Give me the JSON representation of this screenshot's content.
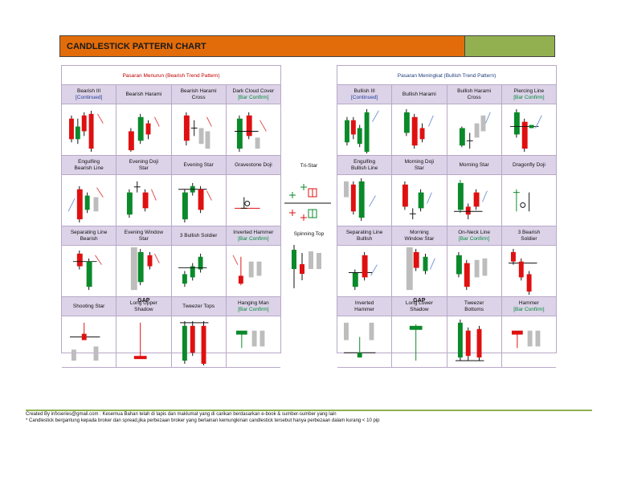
{
  "header": {
    "title": "CANDLESTICK PATTERN CHART"
  },
  "left_panel": {
    "heading": "Pasaran Menurun (Bearish Trend Pattern)",
    "rows": [
      [
        {
          "label": "Bearish III",
          "sub": "[Continued]",
          "sub_color": "blue"
        },
        {
          "label": "Bearish Harami",
          "sub": "",
          "sub_color": ""
        },
        {
          "label": "Bearish Harami",
          "sub": "Cross",
          "sub_color": ""
        },
        {
          "label": "Dark Cloud Cover",
          "sub": "[Bar Confirm]",
          "sub_color": "green"
        }
      ],
      [
        {
          "label": "Engulfing",
          "sub": "Bearish Line",
          "sub_color": ""
        },
        {
          "label": "Evening Doji",
          "sub": "Star",
          "sub_color": ""
        },
        {
          "label": "Evening Star",
          "sub": "",
          "sub_color": ""
        },
        {
          "label": "Gravestone Doji",
          "sub": "",
          "sub_color": ""
        }
      ],
      [
        {
          "label": "Separating Line",
          "sub": "Bearish",
          "sub_color": ""
        },
        {
          "label": "Evening Window",
          "sub": "Star",
          "sub_color": ""
        },
        {
          "label": "3 Bullish Soldier",
          "sub": "",
          "sub_color": ""
        },
        {
          "label": "Inverted Hammer",
          "sub": "[Bar Confirm]",
          "sub_color": "green"
        }
      ],
      [
        {
          "label": "Shooting Star",
          "sub": "",
          "sub_color": ""
        },
        {
          "label": "Long Upper",
          "sub": "Shadow",
          "sub_color": ""
        },
        {
          "label": "Tweezer Tops",
          "sub": "",
          "sub_color": ""
        },
        {
          "label": "Hanging Man",
          "sub": "[Bar Confirm]",
          "sub_color": "green"
        }
      ]
    ],
    "gap_label": "GAP"
  },
  "center": {
    "tri_star": "Tri-Star",
    "spinning_top": "Spinning Top"
  },
  "right_panel": {
    "heading": "Pasaran Meningkat (Bullish Trend Pattern)",
    "rows": [
      [
        {
          "label": "Bullish III",
          "sub": "[Continued]",
          "sub_color": "blue"
        },
        {
          "label": "Bullish Harami",
          "sub": "",
          "sub_color": ""
        },
        {
          "label": "Bullish Harami",
          "sub": "Cross",
          "sub_color": ""
        },
        {
          "label": "Piercing Line",
          "sub": "[Bar Confirm]",
          "sub_color": "green"
        }
      ],
      [
        {
          "label": "Engulfing",
          "sub": "Bullish Line",
          "sub_color": ""
        },
        {
          "label": "Morning Doji",
          "sub": "Star",
          "sub_color": ""
        },
        {
          "label": "Morning Star",
          "sub": "",
          "sub_color": ""
        },
        {
          "label": "Dragonfly Doji",
          "sub": "",
          "sub_color": ""
        }
      ],
      [
        {
          "label": "Separating Line",
          "sub": "Bullish",
          "sub_color": ""
        },
        {
          "label": "Morning",
          "sub": "Window Star",
          "sub_color": ""
        },
        {
          "label": "On-Neck Line",
          "sub": "[Bar Confirm]",
          "sub_color": "green"
        },
        {
          "label": "3 Bearish",
          "sub": "Soldier",
          "sub_color": ""
        }
      ],
      [
        {
          "label": "Inverted",
          "sub": "Hammer",
          "sub_color": ""
        },
        {
          "label": "Long Lower",
          "sub": "Shadow",
          "sub_color": ""
        },
        {
          "label": "Tweezer",
          "sub": "Bottoms",
          "sub_color": ""
        },
        {
          "label": "Hammer",
          "sub": "[Bar Confirm]",
          "sub_color": "green"
        }
      ]
    ],
    "gap_label": "GAP"
  },
  "footer": {
    "line1": "Created By infxseries@gmail.com  : Kesemua Bahan telah di tapis dan maklumat yang di carikan berdasarkan e-book & sumber-sumber yang lain",
    "line2": "* Candlestick bergantung kepada broker dan spread,jika perbezaan broker yang berlainan kemungkinan candlestick tersebut hanya perbezaan  dalam kurang < 10 pip"
  },
  "colors": {
    "bull": "#0a8a2a",
    "bear": "#e01010",
    "neutral": "#bdbdbd",
    "arrow": "#e05050",
    "arrow_up": "#7a9ad8"
  }
}
